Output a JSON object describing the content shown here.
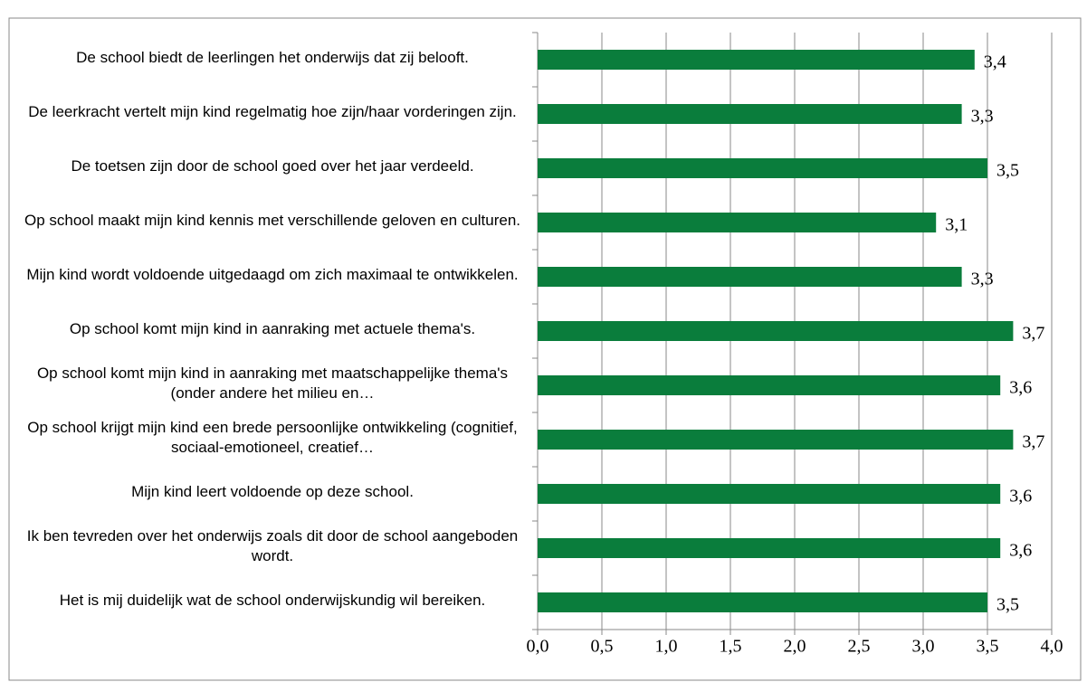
{
  "chart_data": {
    "type": "bar",
    "orientation": "horizontal",
    "categories": [
      "De school biedt de leerlingen het onderwijs dat zij belooft.",
      "De leerkracht vertelt mijn kind regelmatig hoe zijn/haar vorderingen zijn.",
      "De toetsen zijn door de school goed over het jaar verdeeld.",
      "Op school maakt mijn kind kennis met verschillende geloven en culturen.",
      "Mijn kind wordt voldoende uitgedaagd om zich maximaal te ontwikkelen.",
      "Op school komt mijn kind in aanraking met actuele thema's.",
      "Op school komt mijn kind in aanraking met maatschappelijke thema's (onder andere het milieu en…",
      "Op school krijgt mijn kind een brede persoonlijke ontwikkeling (cognitief, sociaal-emotioneel, creatief…",
      "Mijn kind leert voldoende op deze school.",
      "Ik ben tevreden over het onderwijs zoals dit door de school aangeboden wordt.",
      "Het is mij duidelijk wat de school onderwijskundig wil bereiken."
    ],
    "values": [
      3.4,
      3.3,
      3.5,
      3.1,
      3.3,
      3.7,
      3.6,
      3.7,
      3.6,
      3.6,
      3.5
    ],
    "value_labels": [
      "3,4",
      "3,3",
      "3,5",
      "3,1",
      "3,3",
      "3,7",
      "3,6",
      "3,7",
      "3,6",
      "3,6",
      "3,5"
    ],
    "color": "#0a7d3c",
    "xlim": [
      0,
      4
    ],
    "xticks": [
      {
        "value": 0,
        "label": "0,0"
      },
      {
        "value": 0.5,
        "label": "0,5"
      },
      {
        "value": 1,
        "label": "1,0"
      },
      {
        "value": 1.5,
        "label": "1,5"
      },
      {
        "value": 2,
        "label": "2,0"
      },
      {
        "value": 2.5,
        "label": "2,5"
      },
      {
        "value": 3,
        "label": "3,0"
      },
      {
        "value": 3.5,
        "label": "3,5"
      },
      {
        "value": 4,
        "label": "4,0"
      }
    ],
    "grid": true
  }
}
